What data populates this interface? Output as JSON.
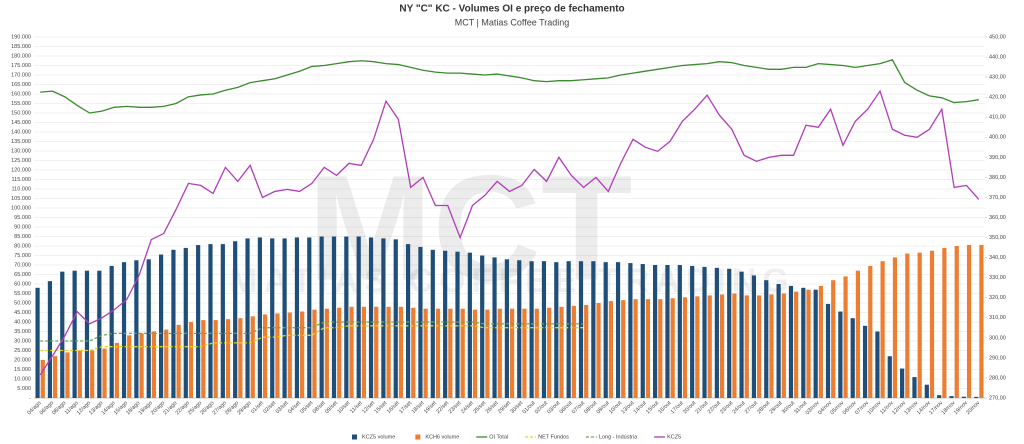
{
  "chart_data": {
    "type": "bar",
    "title": "NY \"C\" KC - Volumes OI e preço de fechamento",
    "subtitle": "MCT | Matias Coffee Trading",
    "watermark": "MCT",
    "watermark_subtitle": "MATIAS COFFEE TRADING",
    "categories": [
      "04/ago",
      "06/ago",
      "08/ago",
      "11/ago",
      "12/ago",
      "13/ago",
      "14/ago",
      "15/ago",
      "18/ago",
      "19/ago",
      "20/ago",
      "21/ago",
      "22/ago",
      "25/ago",
      "26/ago",
      "27/ago",
      "28/ago",
      "29/ago",
      "01/set",
      "02/set",
      "03/set",
      "04/set",
      "05/set",
      "08/set",
      "09/set",
      "10/set",
      "11/set",
      "12/set",
      "15/set",
      "16/set",
      "17/set",
      "18/set",
      "19/set",
      "22/set",
      "23/set",
      "24/set",
      "25/set",
      "26/set",
      "29/set",
      "30/set",
      "01/out",
      "02/out",
      "03/out",
      "06/out",
      "07/out",
      "08/out",
      "09/out",
      "10/out",
      "13/out",
      "14/out",
      "15/out",
      "16/out",
      "17/out",
      "20/out",
      "21/out",
      "22/out",
      "23/out",
      "24/out",
      "27/out",
      "28/out",
      "29/out",
      "30/out",
      "31/out",
      "03/nov",
      "04/nov",
      "05/nov",
      "06/nov",
      "07/nov",
      "10/nov",
      "11/nov",
      "12/nov",
      "13/nov",
      "14/nov",
      "17/nov",
      "18/nov",
      "19/nov",
      "20/nov"
    ],
    "series": [
      {
        "name": "KCZ5 volume",
        "type": "bar",
        "color": "#1f4e79",
        "values": [
          58000,
          61500,
          66500,
          67000,
          67000,
          67000,
          69500,
          71500,
          72500,
          73000,
          75500,
          78000,
          79000,
          80500,
          81000,
          81000,
          82500,
          84000,
          84500,
          84000,
          84000,
          84500,
          84500,
          85000,
          85000,
          85000,
          85000,
          84500,
          84000,
          83500,
          81000,
          79500,
          78000,
          77500,
          77000,
          76500,
          75000,
          74000,
          73000,
          72500,
          72000,
          72000,
          71500,
          72000,
          72000,
          72000,
          71500,
          71500,
          71000,
          70500,
          70000,
          70000,
          70000,
          69500,
          69000,
          68500,
          68000,
          66500,
          64500,
          62000,
          60000,
          59000,
          58000,
          57000,
          49500,
          45500,
          42000,
          38000,
          35000,
          22000,
          15500,
          11000,
          7000,
          1500,
          1000,
          700,
          600
        ]
      },
      {
        "name": "KCH6 volume",
        "type": "bar",
        "color": "#ed7d31",
        "values": [
          20000,
          22000,
          24000,
          25000,
          25000,
          26000,
          29000,
          33000,
          34000,
          35000,
          36000,
          38500,
          40000,
          41000,
          41000,
          41500,
          42000,
          43000,
          44000,
          44500,
          45000,
          45500,
          46500,
          47000,
          47500,
          48000,
          48000,
          48000,
          48000,
          48000,
          47500,
          47000,
          47000,
          47000,
          47000,
          46500,
          46500,
          47000,
          47000,
          47000,
          47000,
          47500,
          48000,
          48500,
          49000,
          50000,
          51000,
          51500,
          52000,
          52000,
          52000,
          52500,
          53000,
          53500,
          54000,
          54500,
          55000,
          54000,
          54000,
          54500,
          55000,
          56000,
          57000,
          59000,
          62000,
          64000,
          67000,
          69500,
          72000,
          74000,
          76000,
          76500,
          77500,
          79000,
          80000,
          80500,
          80500
        ]
      },
      {
        "name": "OI Total",
        "type": "line",
        "color": "#3a8a2e",
        "values": [
          161000,
          161500,
          158500,
          154000,
          150000,
          151000,
          153000,
          153500,
          153000,
          153000,
          153500,
          155000,
          158500,
          159500,
          160000,
          162000,
          163500,
          166000,
          167000,
          168000,
          170000,
          172000,
          174500,
          175000,
          176000,
          177000,
          177500,
          177000,
          176000,
          175500,
          174000,
          172500,
          171500,
          171000,
          171000,
          170500,
          170000,
          170500,
          169500,
          168500,
          167000,
          166500,
          167000,
          167000,
          167500,
          168000,
          168500,
          170000,
          171000,
          172000,
          173000,
          174000,
          175000,
          175500,
          176000,
          177000,
          176500,
          175000,
          174000,
          173000,
          173000,
          174000,
          174000,
          176000,
          175500,
          175000,
          174000,
          175000,
          176000,
          178000,
          166000,
          162000,
          159000,
          158000,
          155500,
          156000,
          157000
        ]
      },
      {
        "name": "NET Fundos",
        "type": "line",
        "dash": true,
        "color": "#e8d21a",
        "values": [
          25000,
          25000,
          25000,
          25000,
          25000,
          27000,
          27000,
          27000,
          27000,
          27000,
          27000,
          27000,
          27000,
          27000,
          29000,
          29000,
          29000,
          29000,
          32000,
          32000,
          33000,
          33000,
          33000,
          37000,
          37000,
          38000,
          38000,
          38000,
          38000,
          38000,
          38000,
          38000,
          38000,
          38000,
          38000,
          38000,
          37000,
          37000,
          37000,
          37000,
          37000,
          37000,
          37000,
          37000,
          37000,
          null,
          null,
          null,
          null,
          null,
          null,
          null,
          null,
          null,
          null,
          null,
          null,
          null,
          null,
          null,
          null,
          null,
          null,
          null,
          null,
          null,
          null,
          null,
          null,
          null,
          null,
          null,
          null,
          null,
          null,
          null,
          null
        ]
      },
      {
        "name": "Long - Indústria",
        "type": "line",
        "dash": true,
        "color": "#6aa84f",
        "values": [
          30000,
          30000,
          30000,
          30000,
          30000,
          33000,
          34000,
          34000,
          34000,
          34000,
          34000,
          34000,
          34000,
          34000,
          34000,
          34000,
          34000,
          34000,
          37000,
          37000,
          37000,
          37000,
          37000,
          40000,
          40000,
          40000,
          40000,
          40000,
          40000,
          40000,
          40000,
          40000,
          40000,
          40000,
          40000,
          40000,
          39000,
          39000,
          39000,
          39000,
          39000,
          39000,
          39000,
          39000,
          39000,
          null,
          null,
          null,
          null,
          null,
          null,
          null,
          null,
          null,
          null,
          null,
          null,
          null,
          null,
          null,
          null,
          null,
          null,
          null,
          null,
          null,
          null,
          null,
          null,
          null,
          null,
          null,
          null,
          null,
          null,
          null,
          null
        ]
      },
      {
        "name": "KCZ5",
        "type": "line",
        "axis": "y2",
        "color": "#b03cb8",
        "values": [
          281.5,
          291,
          301,
          313,
          307,
          310,
          314,
          319,
          331,
          349,
          352,
          364,
          377,
          376,
          372,
          385,
          378,
          386,
          370,
          373,
          374,
          373,
          377,
          385,
          381,
          387,
          386,
          399,
          418,
          409,
          375,
          380,
          366,
          366,
          350,
          366,
          371,
          378,
          373,
          376,
          384,
          378,
          390,
          381,
          375,
          380,
          373,
          387,
          399,
          395,
          393,
          398,
          408,
          414,
          421,
          411,
          404,
          391,
          388,
          390,
          391,
          391,
          406,
          405,
          414,
          396,
          408,
          414,
          423,
          404,
          401,
          400,
          404,
          414,
          375,
          376,
          369
        ]
      }
    ],
    "ylim": [
      0,
      190000
    ],
    "yticks": [
      {
        "value": 0,
        "label": "-"
      },
      {
        "value": 5000,
        "label": "5.000"
      },
      {
        "value": 10000,
        "label": "10.000"
      },
      {
        "value": 15000,
        "label": "15.000"
      },
      {
        "value": 20000,
        "label": "20.000"
      },
      {
        "value": 25000,
        "label": "25.000"
      },
      {
        "value": 30000,
        "label": "30.000"
      },
      {
        "value": 35000,
        "label": "35.000"
      },
      {
        "value": 40000,
        "label": "40.000"
      },
      {
        "value": 45000,
        "label": "45.000"
      },
      {
        "value": 50000,
        "label": "50.000"
      },
      {
        "value": 55000,
        "label": "55.000"
      },
      {
        "value": 60000,
        "label": "60.000"
      },
      {
        "value": 65000,
        "label": "65.000"
      },
      {
        "value": 70000,
        "label": "70.000"
      },
      {
        "value": 75000,
        "label": "75.000"
      },
      {
        "value": 80000,
        "label": "80.000"
      },
      {
        "value": 85000,
        "label": "85.000"
      },
      {
        "value": 90000,
        "label": "90.000"
      },
      {
        "value": 95000,
        "label": "95.000"
      },
      {
        "value": 100000,
        "label": "100.000"
      },
      {
        "value": 105000,
        "label": "105.000"
      },
      {
        "value": 110000,
        "label": "110.000"
      },
      {
        "value": 115000,
        "label": "115.000"
      },
      {
        "value": 120000,
        "label": "120.000"
      },
      {
        "value": 125000,
        "label": "125.000"
      },
      {
        "value": 130000,
        "label": "130.000"
      },
      {
        "value": 135000,
        "label": "135.000"
      },
      {
        "value": 140000,
        "label": "140.000"
      },
      {
        "value": 145000,
        "label": "145.000"
      },
      {
        "value": 150000,
        "label": "150.000"
      },
      {
        "value": 155000,
        "label": "155.000"
      },
      {
        "value": 160000,
        "label": "160.000"
      },
      {
        "value": 165000,
        "label": "165.000"
      },
      {
        "value": 170000,
        "label": "170.000"
      },
      {
        "value": 175000,
        "label": "175.000"
      },
      {
        "value": 180000,
        "label": "180.000"
      },
      {
        "value": 185000,
        "label": "185.000"
      },
      {
        "value": 190000,
        "label": "190.000"
      }
    ],
    "y2lim": [
      270,
      450
    ],
    "y2ticks": [
      {
        "value": 270,
        "label": "270,00"
      },
      {
        "value": 280,
        "label": "280,00"
      },
      {
        "value": 290,
        "label": "290,00"
      },
      {
        "value": 300,
        "label": "300,00"
      },
      {
        "value": 310,
        "label": "310,00"
      },
      {
        "value": 320,
        "label": "320,00"
      },
      {
        "value": 330,
        "label": "330,00"
      },
      {
        "value": 340,
        "label": "340,00"
      },
      {
        "value": 350,
        "label": "350,00"
      },
      {
        "value": 360,
        "label": "360,00"
      },
      {
        "value": 370,
        "label": "370,00"
      },
      {
        "value": 380,
        "label": "380,00"
      },
      {
        "value": 390,
        "label": "390,00"
      },
      {
        "value": 400,
        "label": "400,00"
      },
      {
        "value": 410,
        "label": "410,00"
      },
      {
        "value": 420,
        "label": "420,00"
      },
      {
        "value": 430,
        "label": "430,00"
      },
      {
        "value": 440,
        "label": "440,00"
      },
      {
        "value": 450,
        "label": "450,00"
      }
    ],
    "grid": true,
    "legend": "bottom"
  }
}
